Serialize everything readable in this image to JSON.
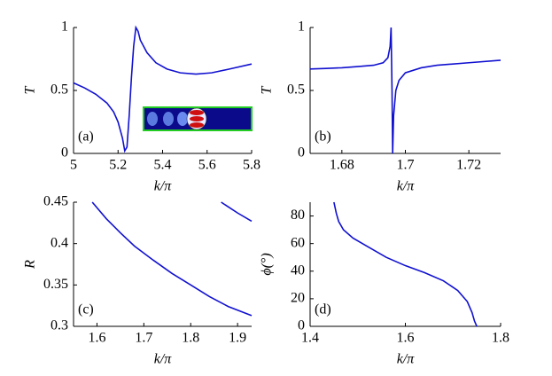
{
  "chart_data": [
    {
      "type": "line",
      "annotation": "(a)",
      "x_label": "k/π",
      "y_label": "T",
      "xlim": [
        5,
        5.8
      ],
      "xticks": [
        5,
        5.2,
        5.4,
        5.6,
        5.8
      ],
      "ylim": [
        0,
        1
      ],
      "yticks": [
        0,
        0.5,
        1
      ],
      "series": [
        {
          "color": "#1010d0",
          "x": [
            5,
            5.05,
            5.1,
            5.15,
            5.18,
            5.2,
            5.22,
            5.23,
            5.24,
            5.25,
            5.26,
            5.27,
            5.28,
            5.29,
            5.3,
            5.33,
            5.37,
            5.42,
            5.48,
            5.55,
            5.62,
            5.7,
            5.8
          ],
          "values": [
            0.56,
            0.52,
            0.47,
            0.4,
            0.33,
            0.25,
            0.12,
            0.02,
            0.05,
            0.3,
            0.6,
            0.85,
            1,
            0.97,
            0.9,
            0.8,
            0.72,
            0.67,
            0.64,
            0.63,
            0.64,
            0.67,
            0.71
          ]
        }
      ]
    },
    {
      "type": "line",
      "annotation": "(b)",
      "x_label": "k/π",
      "y_label": "T",
      "xlim": [
        1.67,
        1.73
      ],
      "xticks": [
        1.68,
        1.7,
        1.72
      ],
      "ylim": [
        0,
        1
      ],
      "yticks": [
        0,
        0.5,
        1
      ],
      "series": [
        {
          "color": "#1010d0",
          "x": [
            1.67,
            1.675,
            1.68,
            1.685,
            1.69,
            1.693,
            1.6945,
            1.6952,
            1.6955,
            1.6958,
            1.696,
            1.6963,
            1.697,
            1.698,
            1.7,
            1.705,
            1.71,
            1.72,
            1.73
          ],
          "values": [
            0.67,
            0.675,
            0.68,
            0.69,
            0.7,
            0.72,
            0.76,
            0.85,
            1,
            0.5,
            0,
            0.3,
            0.5,
            0.58,
            0.64,
            0.68,
            0.7,
            0.72,
            0.74
          ]
        }
      ]
    },
    {
      "type": "line",
      "annotation": "(c)",
      "x_label": "k/π",
      "y_label": "R",
      "xlim": [
        1.55,
        1.93
      ],
      "xticks": [
        1.6,
        1.7,
        1.8,
        1.9
      ],
      "ylim": [
        0.3,
        0.45
      ],
      "yticks": [
        0.3,
        0.35,
        0.4,
        0.45
      ],
      "series": [
        {
          "color": "#1010d0",
          "x": [
            1.59,
            1.62,
            1.65,
            1.68,
            1.72,
            1.76,
            1.8,
            1.84,
            1.88,
            1.93
          ],
          "values": [
            0.45,
            0.43,
            0.413,
            0.397,
            0.38,
            0.364,
            0.35,
            0.336,
            0.324,
            0.313
          ]
        },
        {
          "color": "#1010d0",
          "x": [
            1.865,
            1.9,
            1.93
          ],
          "values": [
            0.45,
            0.437,
            0.427
          ]
        }
      ]
    },
    {
      "type": "line",
      "annotation": "(d)",
      "x_label": "k/π",
      "y_label": "ϕ(°)",
      "xlim": [
        1.4,
        1.8
      ],
      "xticks": [
        1.4,
        1.6,
        1.8
      ],
      "ylim": [
        0,
        90
      ],
      "yticks": [
        0,
        20,
        40,
        60,
        80
      ],
      "series": [
        {
          "color": "#1010d0",
          "x": [
            1.45,
            1.455,
            1.46,
            1.47,
            1.49,
            1.52,
            1.56,
            1.6,
            1.64,
            1.68,
            1.71,
            1.73,
            1.74,
            1.745,
            1.75
          ],
          "values": [
            90,
            82,
            76,
            70,
            64,
            58,
            50,
            44,
            39,
            33,
            26,
            18,
            10,
            4,
            0
          ]
        }
      ]
    }
  ]
}
